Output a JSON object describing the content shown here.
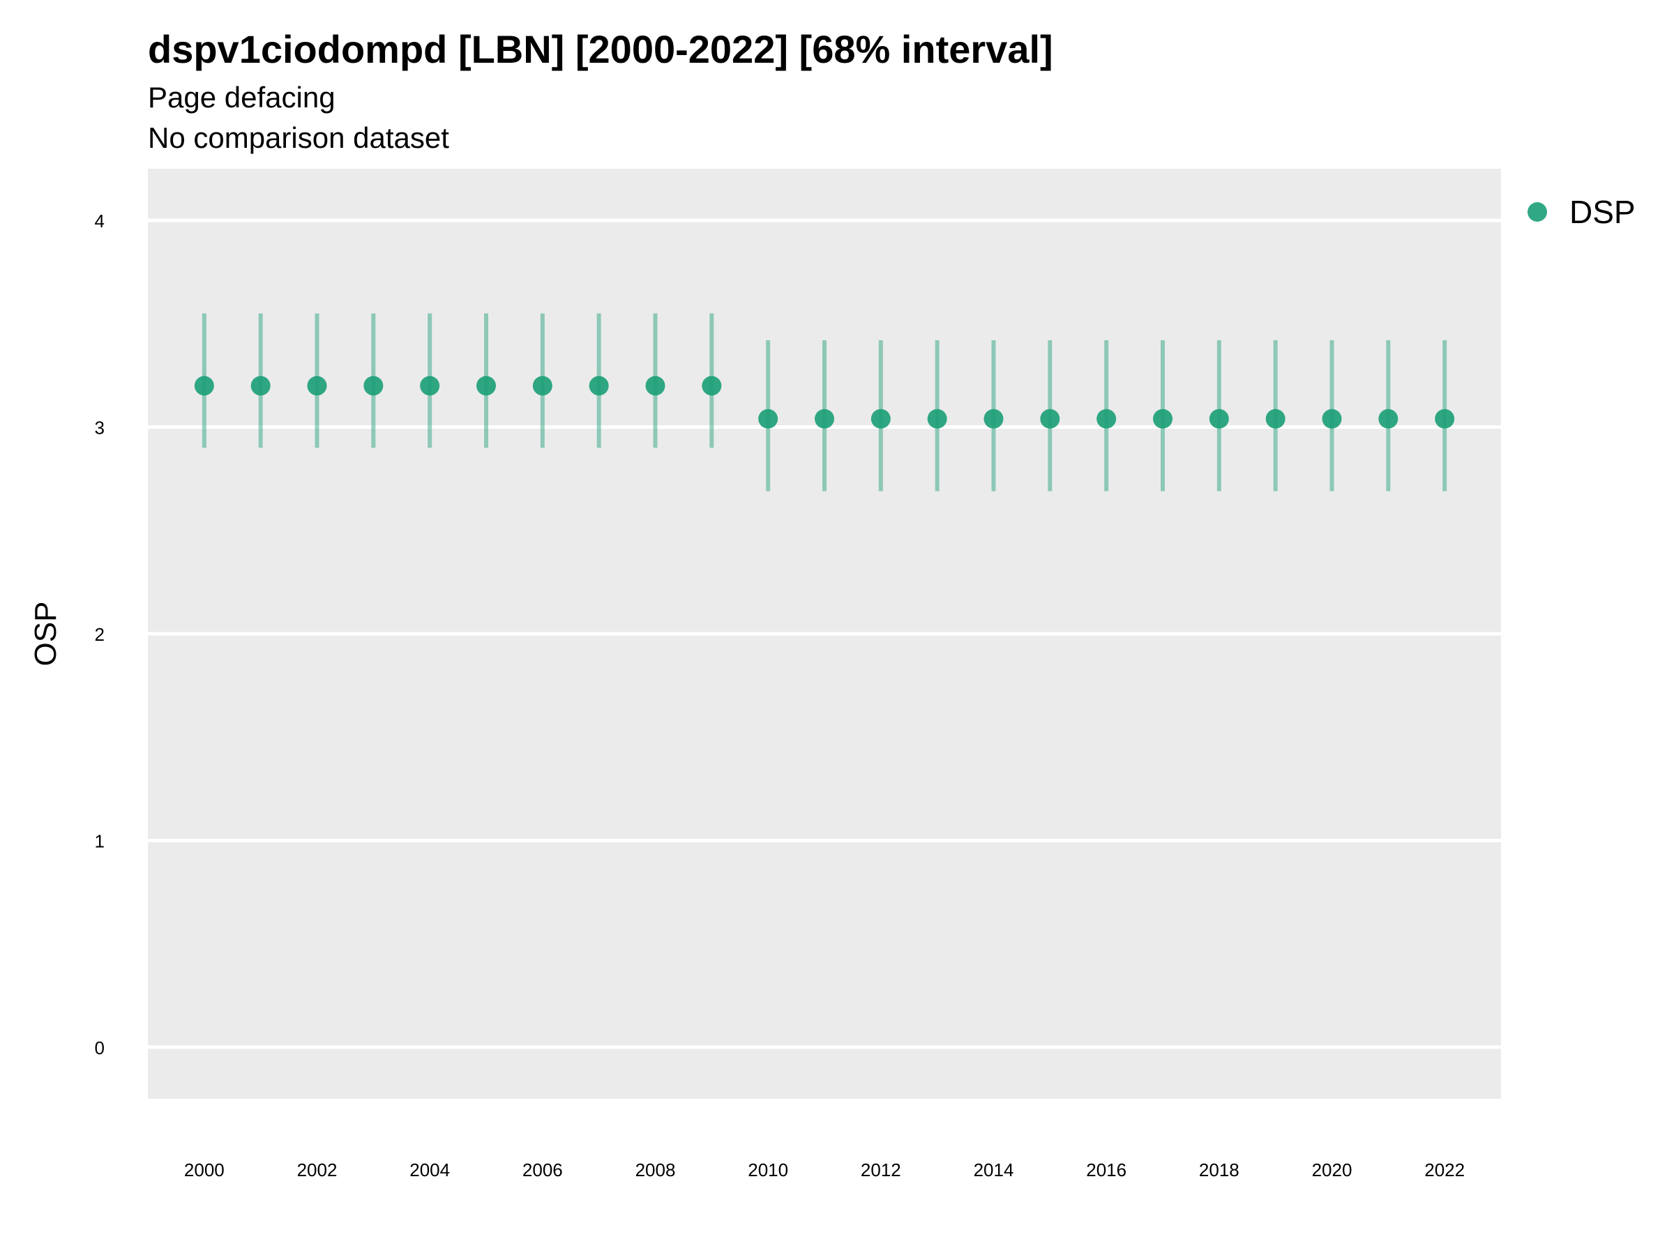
{
  "chart_data": {
    "type": "scatter",
    "title": "dspv1ciodompd [LBN] [2000-2022] [68% interval]",
    "subtitle": [
      "Page defacing",
      "No comparison dataset"
    ],
    "xlabel": "",
    "ylabel": "OSP",
    "xlim": [
      1999,
      2023
    ],
    "ylim": [
      -0.25,
      4.25
    ],
    "yticks": [
      0,
      1,
      2,
      3,
      4
    ],
    "xticks": [
      2000,
      2002,
      2004,
      2006,
      2008,
      2010,
      2012,
      2014,
      2016,
      2018,
      2020,
      2022
    ],
    "grid": true,
    "legend_position": "top-right",
    "series": [
      {
        "name": "DSP",
        "color": "#1b9e77",
        "x": [
          2000,
          2001,
          2002,
          2003,
          2004,
          2005,
          2006,
          2007,
          2008,
          2009,
          2010,
          2011,
          2012,
          2013,
          2014,
          2015,
          2016,
          2017,
          2018,
          2019,
          2020,
          2021,
          2022
        ],
        "y": [
          3.2,
          3.2,
          3.2,
          3.2,
          3.2,
          3.2,
          3.2,
          3.2,
          3.2,
          3.2,
          3.04,
          3.04,
          3.04,
          3.04,
          3.04,
          3.04,
          3.04,
          3.04,
          3.04,
          3.04,
          3.04,
          3.04,
          3.04
        ],
        "lower": [
          2.9,
          2.9,
          2.9,
          2.9,
          2.9,
          2.9,
          2.9,
          2.9,
          2.9,
          2.9,
          2.69,
          2.69,
          2.69,
          2.69,
          2.69,
          2.69,
          2.69,
          2.69,
          2.69,
          2.69,
          2.69,
          2.69,
          2.69
        ],
        "upper": [
          3.55,
          3.55,
          3.55,
          3.55,
          3.55,
          3.55,
          3.55,
          3.55,
          3.55,
          3.55,
          3.42,
          3.42,
          3.42,
          3.42,
          3.42,
          3.42,
          3.42,
          3.42,
          3.42,
          3.42,
          3.42,
          3.42,
          3.42
        ]
      }
    ]
  }
}
